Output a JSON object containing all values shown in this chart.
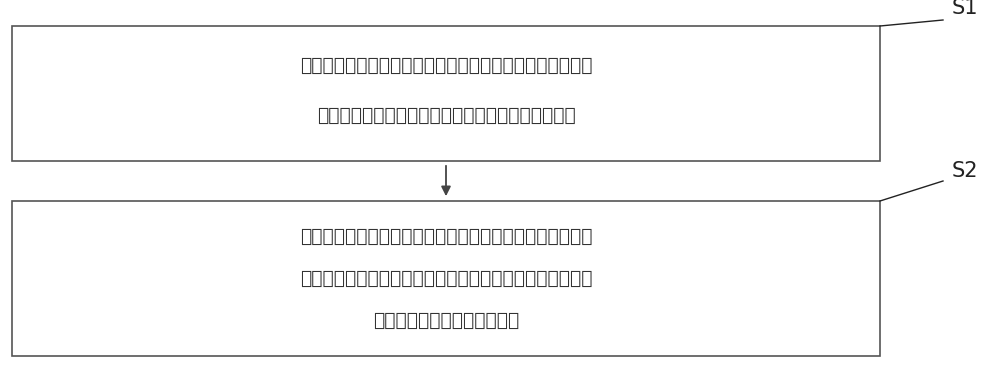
{
  "background_color": "#ffffff",
  "box1_text_line1": "通过仿真机模拟并发送汽轮机多个运行参数至所述汽轮机保",
  "box1_text_line2": "护系统，以对所述汽轮机保护系统进行保护动作测试",
  "box2_text_line1": "通过阀门调试装置模拟所述汽轮机保护系统对所述主汽阀的",
  "box2_text_line2": "控制信号，测试所述主汽阀开闭，以测试所述主汽阀与所述",
  "box2_text_line3": "汽轮机保护系统动作是否匹配",
  "label1": "S1",
  "label2": "S2",
  "box_edge_color": "#555555",
  "box_face_color": "#ffffff",
  "text_color": "#333333",
  "arrow_color": "#444444",
  "label_color": "#222222",
  "font_size": 13.5,
  "label_font_size": 15
}
